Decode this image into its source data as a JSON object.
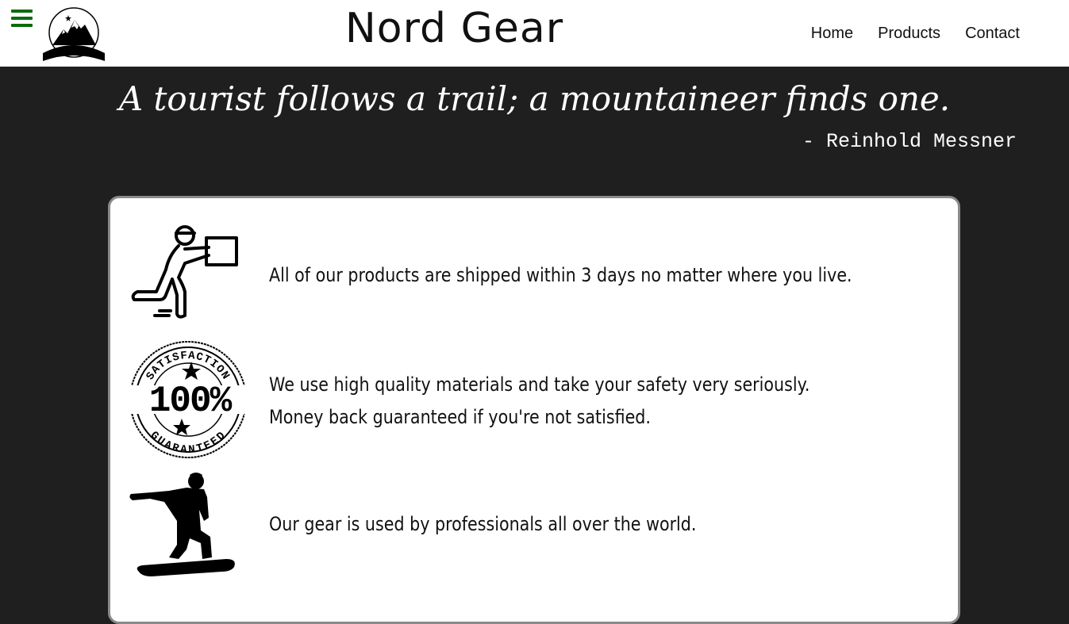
{
  "header": {
    "title": "Nord Gear",
    "nav": [
      "Home",
      "Products",
      "Contact"
    ]
  },
  "quote": {
    "text": "A tourist follows a trail; a mountaineer finds one.",
    "author": "- Reinhold Messner"
  },
  "features": [
    {
      "icon": "delivery-person-icon",
      "lines": [
        "All of our products are shipped within 3 days no matter where you live."
      ]
    },
    {
      "icon": "satisfaction-guaranteed-stamp-icon",
      "stamp": {
        "top": "SATISFACTION",
        "center": "100%",
        "bottom": "GUARANTEED"
      },
      "lines": [
        "We use high quality materials and take your safety very seriously.",
        "Money back guaranteed if you're not satisfied."
      ]
    },
    {
      "icon": "snowboarder-icon",
      "lines": [
        "Our gear is used by professionals all over the world."
      ]
    }
  ],
  "colors": {
    "menu": "#0b6b0b",
    "background": "#1f1f1f",
    "card_border": "#8a8a8a"
  }
}
